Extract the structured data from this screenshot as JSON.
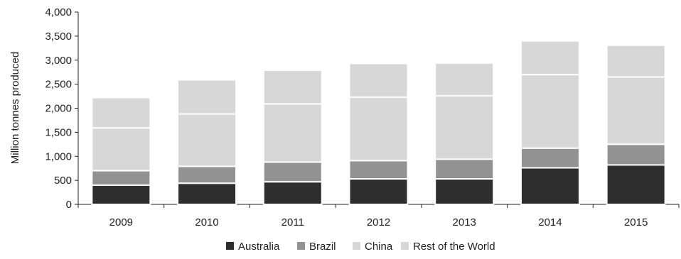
{
  "chart_data": {
    "type": "bar",
    "stacked": true,
    "title": "",
    "xlabel": "",
    "ylabel": "Million tonnes produced",
    "ylim": [
      0,
      4000
    ],
    "yticks": [
      0,
      500,
      1000,
      1500,
      2000,
      2500,
      3000,
      3500,
      4000
    ],
    "ytick_labels": [
      "0",
      "500",
      "1,000",
      "1,500",
      "2,000",
      "2,500",
      "3,000",
      "3,500",
      "4,000"
    ],
    "categories": [
      "2009",
      "2010",
      "2011",
      "2012",
      "2013",
      "2014",
      "2015"
    ],
    "series": [
      {
        "name": "Australia",
        "color": "#2e2e2e",
        "values": [
          400,
          440,
          470,
          530,
          530,
          760,
          820
        ]
      },
      {
        "name": "Brazil",
        "color": "#929292",
        "values": [
          300,
          350,
          410,
          380,
          410,
          410,
          430
        ]
      },
      {
        "name": "China",
        "color": "#d7d7d7",
        "values": [
          890,
          1090,
          1210,
          1320,
          1320,
          1530,
          1400
        ]
      },
      {
        "name": "Rest of the World",
        "color": "#d7d7d7",
        "values": [
          630,
          710,
          700,
          700,
          680,
          700,
          660
        ]
      }
    ],
    "grid": false,
    "legend_position": "bottom"
  }
}
